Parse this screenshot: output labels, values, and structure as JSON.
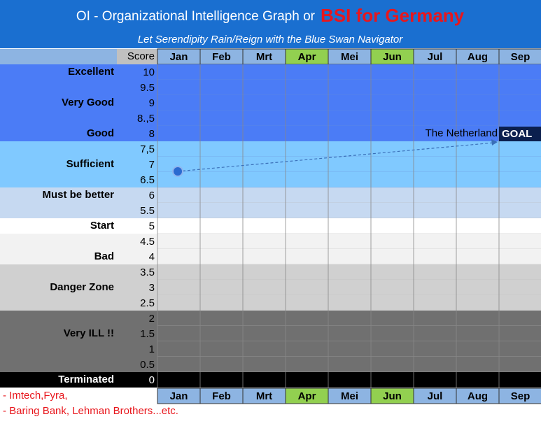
{
  "header": {
    "title": "OI - Organizational Intelligence Graph or",
    "title_highlight": "BSI for Germany",
    "subtitle": "Let Serendipity Rain/Reign with the Blue Swan Navigator"
  },
  "score_header": "Score",
  "months": [
    "Jan",
    "Feb",
    "Mrt",
    "Apr",
    "Mei",
    "Jun",
    "Jul",
    "Aug",
    "Sep"
  ],
  "scores": [
    "10",
    "9.5",
    "9",
    "8.,5",
    "8",
    "7,5",
    "7",
    "6.5",
    "6",
    "5.5",
    "5",
    "4.5",
    "4",
    "3.5",
    "3",
    "2.5",
    "2",
    "1.5",
    "1",
    "0.5",
    "0"
  ],
  "zone_labels": [
    "Excellent",
    "Very Good",
    "Good",
    "Sufficient",
    "Must be better",
    "Start",
    "Bad",
    "Danger Zone",
    "Very ILL !!",
    "Terminated"
  ],
  "annotations": {
    "country": "The Netherland",
    "goal": "GOAL"
  },
  "notes": [
    "- Imtech,Fyra,",
    "- Baring Bank, Lehman Brothers...etc."
  ]
}
